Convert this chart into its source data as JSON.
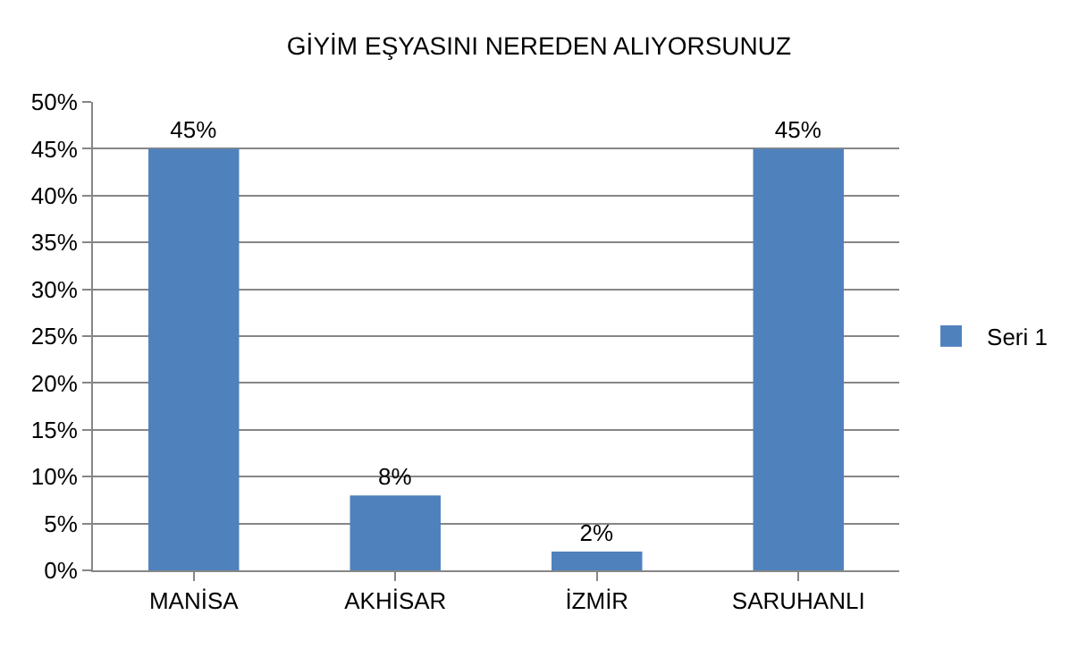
{
  "chart_data": {
    "type": "bar",
    "title": "GİYİM EŞYASINI NEREDEN ALIYORSUNUZ",
    "categories": [
      "MANİSA",
      "AKHİSAR",
      "İZMİR",
      "SARUHANLI"
    ],
    "series": [
      {
        "name": "Seri 1",
        "color": "#4f81bd",
        "values": [
          45,
          8,
          2,
          45
        ],
        "value_labels": [
          "45%",
          "8%",
          "2%",
          "45%"
        ]
      }
    ],
    "ylim": [
      0,
      50
    ],
    "yticks": [
      {
        "value": 0,
        "label": "0%"
      },
      {
        "value": 5,
        "label": "5%"
      },
      {
        "value": 10,
        "label": "10%"
      },
      {
        "value": 15,
        "label": "15%"
      },
      {
        "value": 20,
        "label": "20%"
      },
      {
        "value": 25,
        "label": "25%"
      },
      {
        "value": 30,
        "label": "30%"
      },
      {
        "value": 35,
        "label": "35%"
      },
      {
        "value": 40,
        "label": "40%"
      },
      {
        "value": 45,
        "label": "45%"
      },
      {
        "value": 50,
        "label": "50%"
      }
    ],
    "grid": "y",
    "legend": "right"
  }
}
